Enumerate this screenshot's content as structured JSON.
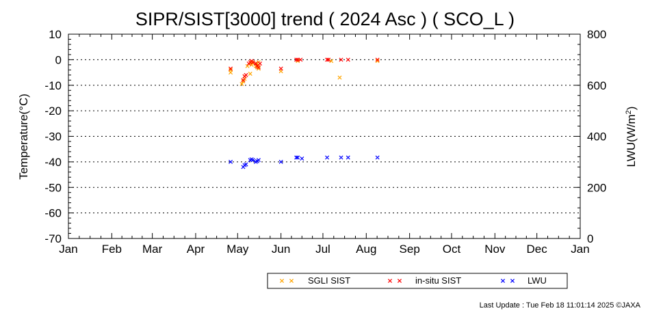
{
  "chart_data": {
    "type": "scatter",
    "title": "SIPR/SIST[3000] trend ( 2024 Asc ) ( SCO_L )",
    "ylabel": "Temperature(°C)",
    "y2label": "LWU(W/m",
    "y2label_sup": "2",
    "y2label_tail": ")",
    "ylim": [
      -70,
      10
    ],
    "y2lim": [
      0,
      800
    ],
    "yticks": [
      10,
      0,
      -10,
      -20,
      -30,
      -40,
      -50,
      -60,
      -70
    ],
    "y2ticks": [
      800,
      600,
      400,
      200,
      0
    ],
    "ytick_labels": [
      "10",
      "0",
      "-10",
      "-20",
      "-30",
      "-40",
      "-50",
      "-60",
      "-70"
    ],
    "y2tick_labels": [
      "800",
      "600",
      "400",
      "200",
      "0"
    ],
    "xlim": [
      0,
      366
    ],
    "xticks": [
      0,
      31,
      60,
      91,
      121,
      152,
      182,
      213,
      244,
      274,
      305,
      335,
      366
    ],
    "xtick_labels": [
      "Jan",
      "Feb",
      "Mar",
      "Apr",
      "May",
      "Jun",
      "Jul",
      "Aug",
      "Sep",
      "Oct",
      "Nov",
      "Dec",
      "Jan"
    ],
    "grid": "horizontal dotted",
    "legend_position": "bottom-right",
    "series": [
      {
        "name": "SGLI SIST",
        "axis": "left",
        "color": "#ffa500",
        "x": [
          116,
          116,
          124,
          125,
          126,
          126,
          128,
          130,
          131,
          131,
          132,
          134,
          135,
          135,
          136,
          136,
          136,
          152,
          164,
          188,
          194,
          221
        ],
        "y": [
          -4,
          -5,
          -9.5,
          -8.5,
          -7.5,
          -6.5,
          -2.5,
          -5.5,
          -2,
          -1,
          -1.5,
          -2.5,
          -1.5,
          -3,
          -2,
          -1,
          -3.5,
          -4.5,
          -0.5,
          -0.5,
          -7,
          -0.5
        ]
      },
      {
        "name": "in-situ SIST",
        "axis": "left",
        "color": "#ff0000",
        "x": [
          116,
          125,
          126,
          127,
          129,
          130,
          131,
          132,
          134,
          135,
          136,
          137,
          152,
          163,
          164,
          166,
          185,
          186,
          195,
          200,
          221
        ],
        "y": [
          -3.5,
          -8,
          -6.5,
          -6,
          -1.5,
          -1,
          -0.5,
          -1,
          -1.5,
          -2.5,
          -3,
          -1.5,
          -3.5,
          0,
          0,
          0,
          0,
          0,
          0,
          0,
          0
        ]
      },
      {
        "name": "LWU",
        "axis": "right",
        "color": "#0000ff",
        "x": [
          116,
          125,
          126,
          127,
          130,
          131,
          132,
          134,
          135,
          136,
          152,
          163,
          164,
          167,
          185,
          195,
          200,
          221
        ],
        "y": [
          300,
          280,
          287,
          290,
          307,
          310,
          307,
          300,
          303,
          307,
          300,
          317,
          317,
          313,
          317,
          317,
          317,
          317
        ]
      }
    ]
  },
  "footer": "Last Update : Tue Feb 18 11:01:14 2025  ©JAXA"
}
